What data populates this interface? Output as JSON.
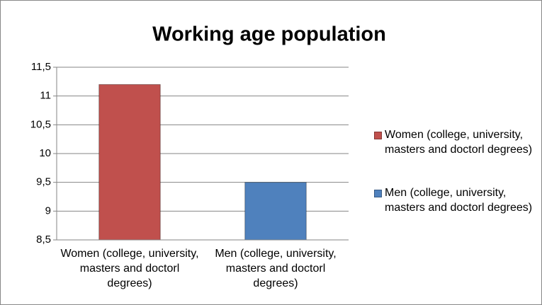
{
  "chart_data": {
    "type": "bar",
    "title": "Working age population",
    "categories": [
      "Women (college, university, masters and doctorl degrees)",
      "Men (college, university, masters and doctorl degrees)"
    ],
    "values": [
      11.2,
      9.5
    ],
    "colors": [
      "#c0504d",
      "#4f81bd"
    ],
    "ylim": [
      8.5,
      11.5
    ],
    "yticks": [
      {
        "value": 8.5,
        "label": "8,5"
      },
      9,
      {
        "value": 9.5,
        "label": "9,5"
      },
      10,
      {
        "value": 10.5,
        "label": "10,5"
      },
      11,
      {
        "value": 11.5,
        "label": "11,5"
      }
    ],
    "grid": true,
    "legend": "right"
  }
}
